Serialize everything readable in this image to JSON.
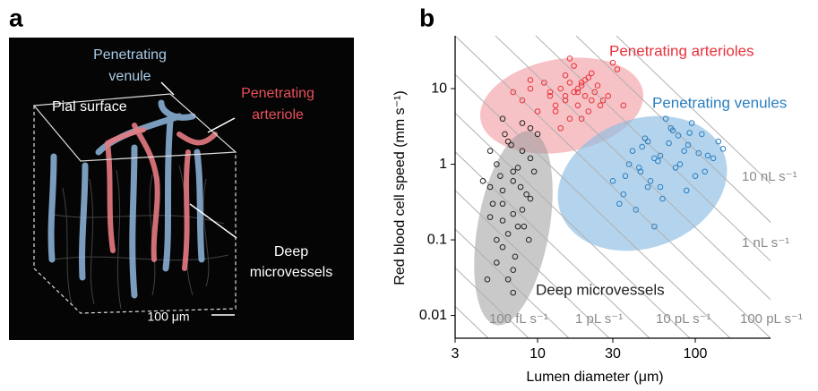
{
  "panels": [
    "a",
    "b"
  ],
  "image_labels": {
    "venule": [
      "Penetrating",
      "venule"
    ],
    "pial": "Pial surface",
    "arteriole": [
      "Penetrating",
      "arteriole"
    ],
    "deep": [
      "Deep",
      "microvessels"
    ],
    "scale": "100 μm"
  },
  "chart_data": {
    "type": "scatter",
    "xlabel": "Lumen diameter (μm)",
    "ylabel": "Red blood cell speed (mm s⁻¹)",
    "xscale": "log",
    "yscale": "log",
    "xlim": [
      3,
      300
    ],
    "ylim": [
      0.005,
      50
    ],
    "xticks": [
      3,
      10,
      30,
      100
    ],
    "yticks": [
      0.01,
      0.1,
      1,
      10
    ],
    "annotations": [
      "10 nL s⁻¹",
      "1 nL s⁻¹",
      "100 fL s⁻¹",
      "1 pL s⁻¹",
      "10 pL s⁻¹",
      "100 pL s⁻¹"
    ],
    "series": [
      {
        "name": "Penetrating arterioles",
        "color": "#e8323c",
        "x": [
          12,
          14,
          15,
          16,
          17,
          18,
          19,
          20,
          21,
          22,
          13,
          15,
          17,
          19,
          23,
          25,
          11,
          9,
          8,
          10,
          14,
          16,
          18,
          20,
          24,
          28,
          32,
          35,
          12,
          16,
          22,
          26,
          30,
          9,
          7,
          13,
          18,
          21,
          15,
          19
        ],
        "values": [
          8,
          10,
          7,
          12,
          9,
          6,
          11,
          8,
          14,
          7,
          5,
          15,
          20,
          4,
          9,
          6,
          12,
          10,
          7,
          5,
          3,
          25,
          9,
          13,
          11,
          8,
          18,
          6,
          9,
          4,
          16,
          7,
          22,
          13,
          9,
          6,
          10,
          5,
          8,
          12
        ]
      },
      {
        "name": "Penetrating venules",
        "color": "#2a7fc1",
        "x": [
          40,
          45,
          50,
          55,
          60,
          70,
          80,
          90,
          100,
          110,
          120,
          35,
          38,
          42,
          48,
          52,
          58,
          65,
          75,
          85,
          95,
          130,
          140,
          150,
          33,
          46,
          62,
          72,
          88,
          105,
          30,
          55,
          68,
          44,
          78,
          115,
          36,
          60,
          92,
          50
        ],
        "values": [
          1.5,
          0.8,
          2,
          1.2,
          0.5,
          3,
          1,
          1.8,
          0.7,
          2.5,
          1.3,
          0.4,
          1,
          0.25,
          2.2,
          0.6,
          1.1,
          4,
          0.9,
          1.5,
          3.5,
          1.2,
          2,
          1.6,
          0.3,
          1.7,
          0.35,
          2.8,
          0.45,
          1.4,
          0.6,
          0.15,
          1.9,
          0.9,
          2.4,
          0.8,
          0.7,
          1.3,
          2.6,
          0.5
        ]
      },
      {
        "name": "Deep microvessels",
        "color": "#222222",
        "x": [
          5,
          5.5,
          6,
          6.5,
          7,
          7.5,
          8,
          8.5,
          9,
          10,
          5,
          6,
          7,
          8,
          9,
          5.5,
          6.5,
          7.5,
          4.5,
          6,
          7,
          8,
          9,
          5,
          6,
          7,
          5.8,
          6.8,
          7.8,
          8.8,
          5.2,
          6.2,
          7.2,
          8.2,
          9.5,
          4.8,
          6,
          7,
          5.5,
          6.5
        ],
        "values": [
          0.5,
          1,
          0.3,
          2,
          0.8,
          0.15,
          1.5,
          0.4,
          3,
          2.5,
          0.2,
          0.08,
          0.6,
          0.25,
          1.2,
          0.05,
          0.12,
          0.9,
          0.6,
          4,
          0.04,
          3.5,
          0.35,
          1.5,
          0.18,
          0.02,
          0.7,
          1.8,
          0.5,
          0.1,
          0.3,
          2.5,
          0.06,
          0.15,
          0.8,
          0.03,
          0.45,
          0.22,
          0.1,
          0.03
        ]
      }
    ]
  }
}
